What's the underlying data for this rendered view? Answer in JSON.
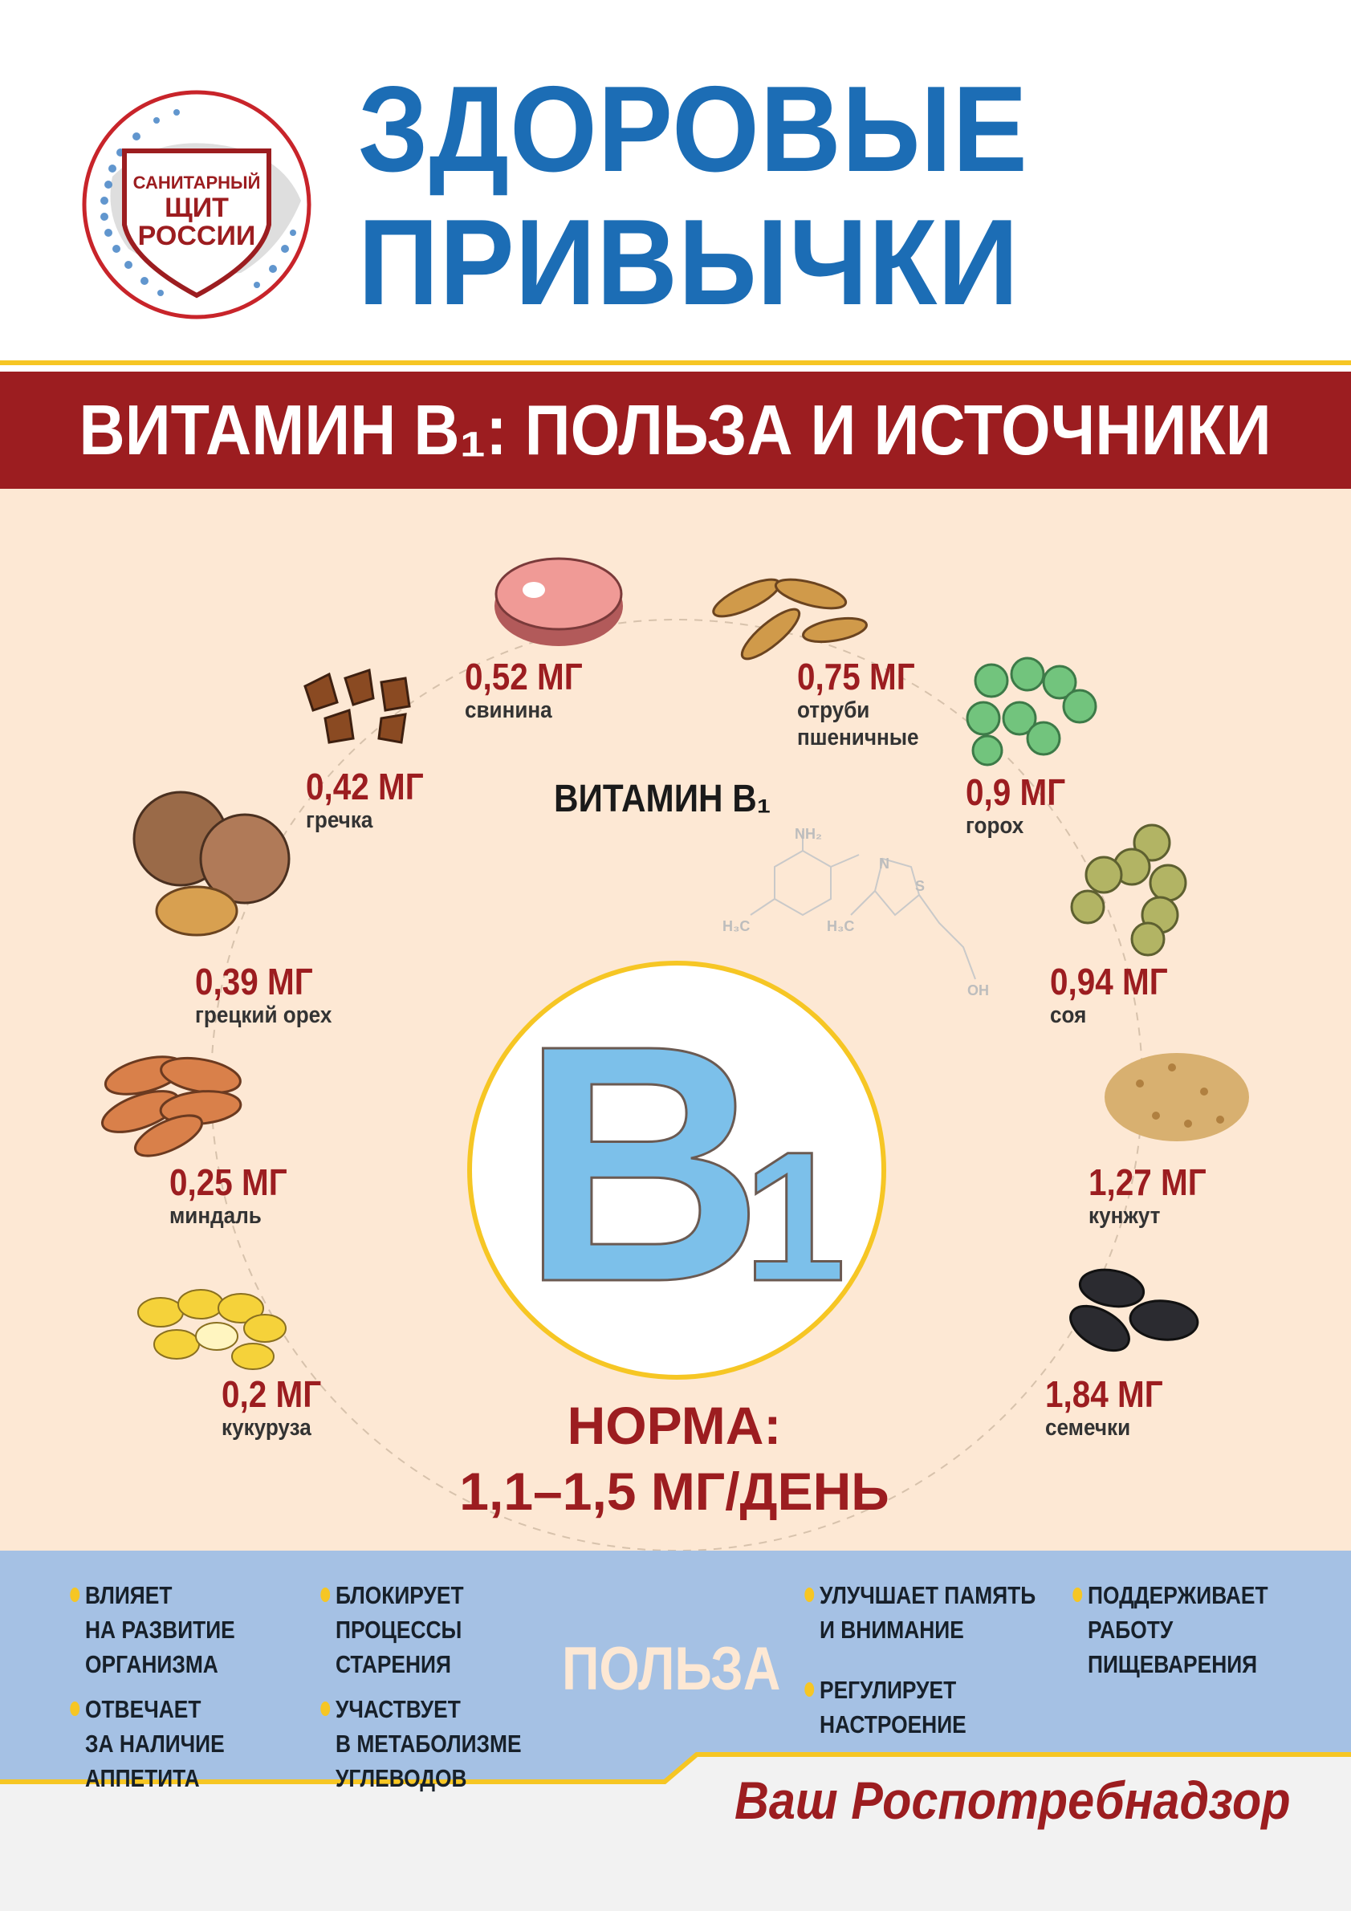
{
  "logo": {
    "line1": "САНИТАРНЫЙ",
    "line2": "ЩИТ",
    "line3": "РОССИИ"
  },
  "title": {
    "line1": "ЗДОРОВЫЕ",
    "line2": "ПРИВЫЧКИ"
  },
  "banner": "ВИТАМИН B₁: ПОЛЬЗА И ИСТОЧНИКИ",
  "center": {
    "label": "ВИТАМИН B₁",
    "letter": "B",
    "digit": "1",
    "molecule": {
      "nh2": "NH₂",
      "h3c1": "H₃C",
      "h3c2": "H₃C",
      "n": "N",
      "s": "S",
      "oh": "OH"
    }
  },
  "norma": {
    "line1": "НОРМА:",
    "line2": "1,1–1,5 МГ/ДЕНЬ"
  },
  "foods": [
    {
      "value": "0,52 МГ",
      "name": "свинина"
    },
    {
      "value": "0,75 МГ",
      "name": "отруби",
      "name2": "пшеничные"
    },
    {
      "value": "0,42 МГ",
      "name": "гречка"
    },
    {
      "value": "0,9 МГ",
      "name": "горох"
    },
    {
      "value": "0,39 МГ",
      "name": "грецкий орех"
    },
    {
      "value": "0,94 МГ",
      "name": "соя"
    },
    {
      "value": "0,25 МГ",
      "name": "миндаль"
    },
    {
      "value": "1,27 МГ",
      "name": "кунжут"
    },
    {
      "value": "0,2 МГ",
      "name": "кукуруза"
    },
    {
      "value": "1,84 МГ",
      "name": "семечки"
    }
  ],
  "benefits": {
    "heading": "ПОЛЬЗА",
    "items": [
      [
        "ВЛИЯЕТ",
        "НА РАЗВИТИЕ",
        "ОРГАНИЗМА"
      ],
      [
        "ОТВЕЧАЕТ",
        "ЗА НАЛИЧИЕ",
        "АППЕТИТА"
      ],
      [
        "БЛОКИРУЕТ",
        "ПРОЦЕССЫ",
        "СТАРЕНИЯ"
      ],
      [
        "УЧАСТВУЕТ",
        "В МЕТАБОЛИЗМЕ",
        "УГЛЕВОДОВ"
      ],
      [
        "УЛУЧШАЕТ ПАМЯТЬ",
        "И ВНИМАНИЕ"
      ],
      [
        "РЕГУЛИРУЕТ",
        "НАСТРОЕНИЕ"
      ],
      [
        "ПОДДЕРЖИВАЕТ",
        "РАБОТУ",
        "ПИЩЕВАРЕНИЯ"
      ]
    ]
  },
  "signature": "Ваш Роспотребнадзор",
  "colors": {
    "blue": "#1c6db5",
    "red": "#9c1d20",
    "yellow": "#f6c624",
    "peach": "#fde8d4",
    "lightblue": "#a5c1e4",
    "b1": "#7cc0ea"
  }
}
